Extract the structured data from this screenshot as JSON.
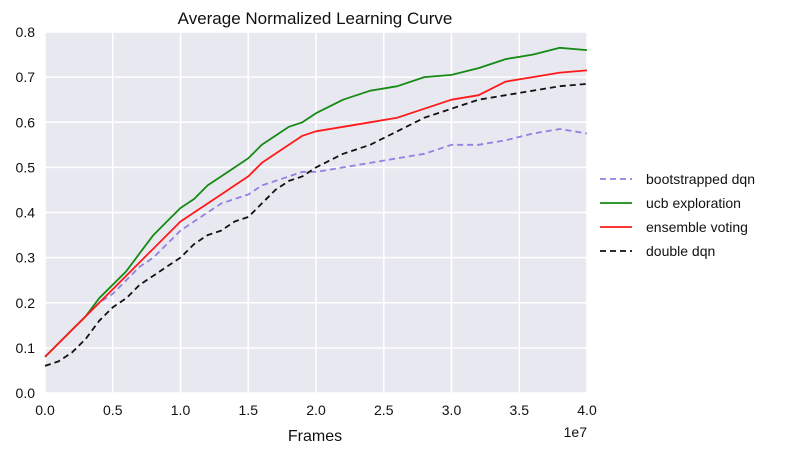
{
  "chart_data": {
    "type": "line",
    "title": "Average Normalized Learning Curve",
    "xlabel": "Frames",
    "ylabel": "",
    "x_multiplier_label": "1e7",
    "xlim": [
      0,
      4.0
    ],
    "ylim": [
      0,
      0.8
    ],
    "xticks": [
      0,
      0.5,
      1.0,
      1.5,
      2.0,
      2.5,
      3.0,
      3.5,
      4.0
    ],
    "xtick_labels": [
      "0.0",
      "0.5",
      "1.0",
      "1.5",
      "2.0",
      "2.5",
      "3.0",
      "3.5",
      "4.0"
    ],
    "yticks": [
      0,
      0.1,
      0.2,
      0.3,
      0.4,
      0.5,
      0.6,
      0.7,
      0.8
    ],
    "ytick_labels": [
      "0.0",
      "0.1",
      "0.2",
      "0.3",
      "0.4",
      "0.5",
      "0.6",
      "0.7",
      "0.8"
    ],
    "grid": true,
    "legend_position": "right",
    "series": [
      {
        "name": "bootstrapped dqn",
        "color": "#9380e0",
        "dash": "dashed",
        "x": [
          0,
          0.1,
          0.2,
          0.3,
          0.4,
          0.5,
          0.6,
          0.7,
          0.8,
          0.9,
          1.0,
          1.1,
          1.2,
          1.3,
          1.4,
          1.5,
          1.6,
          1.7,
          1.8,
          1.9,
          2.0,
          2.2,
          2.4,
          2.6,
          2.8,
          3.0,
          3.2,
          3.4,
          3.6,
          3.8,
          4.0
        ],
        "y": [
          0.08,
          0.11,
          0.14,
          0.17,
          0.2,
          0.22,
          0.25,
          0.28,
          0.3,
          0.33,
          0.36,
          0.38,
          0.4,
          0.42,
          0.43,
          0.44,
          0.46,
          0.47,
          0.48,
          0.49,
          0.49,
          0.5,
          0.51,
          0.52,
          0.53,
          0.55,
          0.55,
          0.56,
          0.575,
          0.585,
          0.575
        ]
      },
      {
        "name": "ucb exploration",
        "color": "#158a15",
        "dash": "solid",
        "x": [
          0,
          0.1,
          0.2,
          0.3,
          0.4,
          0.5,
          0.6,
          0.7,
          0.8,
          0.9,
          1.0,
          1.1,
          1.2,
          1.3,
          1.4,
          1.5,
          1.6,
          1.7,
          1.8,
          1.9,
          2.0,
          2.2,
          2.4,
          2.6,
          2.8,
          3.0,
          3.2,
          3.4,
          3.6,
          3.8,
          4.0
        ],
        "y": [
          0.08,
          0.11,
          0.14,
          0.17,
          0.21,
          0.24,
          0.27,
          0.31,
          0.35,
          0.38,
          0.41,
          0.43,
          0.46,
          0.48,
          0.5,
          0.52,
          0.55,
          0.57,
          0.59,
          0.6,
          0.62,
          0.65,
          0.67,
          0.68,
          0.7,
          0.705,
          0.72,
          0.74,
          0.75,
          0.765,
          0.76
        ]
      },
      {
        "name": "ensemble voting",
        "color": "#ff1a1a",
        "dash": "solid",
        "x": [
          0,
          0.1,
          0.2,
          0.3,
          0.4,
          0.5,
          0.6,
          0.7,
          0.8,
          0.9,
          1.0,
          1.1,
          1.2,
          1.3,
          1.4,
          1.5,
          1.6,
          1.7,
          1.8,
          1.9,
          2.0,
          2.2,
          2.4,
          2.6,
          2.8,
          3.0,
          3.2,
          3.4,
          3.6,
          3.8,
          4.0
        ],
        "y": [
          0.08,
          0.11,
          0.14,
          0.17,
          0.2,
          0.23,
          0.26,
          0.29,
          0.32,
          0.35,
          0.38,
          0.4,
          0.42,
          0.44,
          0.46,
          0.48,
          0.51,
          0.53,
          0.55,
          0.57,
          0.58,
          0.59,
          0.6,
          0.61,
          0.63,
          0.65,
          0.66,
          0.69,
          0.7,
          0.71,
          0.715
        ]
      },
      {
        "name": "double dqn",
        "color": "#111111",
        "dash": "dashed",
        "x": [
          0,
          0.1,
          0.2,
          0.3,
          0.4,
          0.5,
          0.6,
          0.7,
          0.8,
          0.9,
          1.0,
          1.1,
          1.2,
          1.3,
          1.4,
          1.5,
          1.6,
          1.7,
          1.8,
          1.9,
          2.0,
          2.2,
          2.4,
          2.6,
          2.8,
          3.0,
          3.2,
          3.4,
          3.6,
          3.8,
          4.0
        ],
        "y": [
          0.06,
          0.07,
          0.09,
          0.12,
          0.16,
          0.19,
          0.21,
          0.24,
          0.26,
          0.28,
          0.3,
          0.33,
          0.35,
          0.36,
          0.38,
          0.39,
          0.42,
          0.45,
          0.47,
          0.48,
          0.5,
          0.53,
          0.55,
          0.58,
          0.61,
          0.63,
          0.65,
          0.66,
          0.67,
          0.68,
          0.685
        ]
      }
    ]
  }
}
